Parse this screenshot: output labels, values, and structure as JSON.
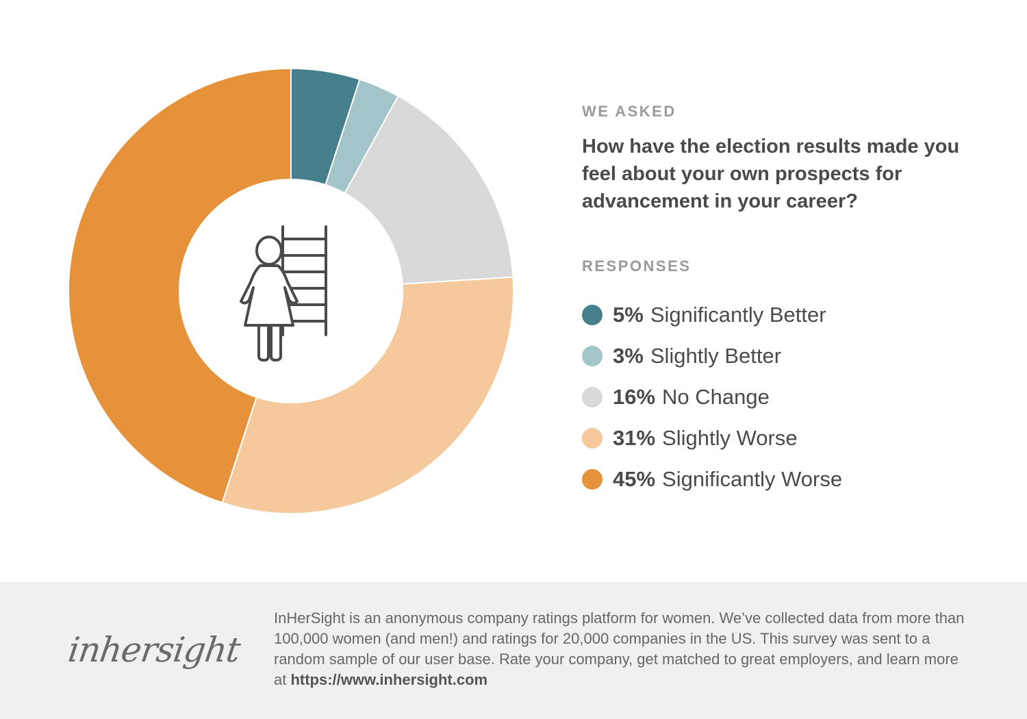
{
  "chart_data": {
    "type": "pie",
    "subtype": "donut",
    "title": "How have the election results made you feel about your own prospects for advancement in your career?",
    "kicker": "WE ASKED",
    "legend_title": "RESPONSES",
    "slices": [
      {
        "label": "Significantly Better",
        "value": 5,
        "pct_text": "5%",
        "color": "#467f8c"
      },
      {
        "label": "Slightly Better",
        "value": 3,
        "pct_text": "3%",
        "color": "#a3c5ca"
      },
      {
        "label": "No Change",
        "value": 16,
        "pct_text": "16%",
        "color": "#d9d9d9"
      },
      {
        "label": "Slightly Worse",
        "value": 31,
        "pct_text": "31%",
        "color": "#f6c99c"
      },
      {
        "label": "Significantly Worse",
        "value": 45,
        "pct_text": "45%",
        "color": "#e6923b"
      }
    ],
    "center_icon": "woman-with-ladder-icon",
    "legend_position": "right"
  },
  "footer": {
    "logo_text": "inhersight",
    "blurb": "InHerSight is an anonymous company ratings platform for women. We’ve collected data from more than 100,000 women (and men!) and ratings for 20,000 companies in the US. This survey was sent to a random sample of our user base. Rate your company, get matched to great employers, and learn more at ",
    "url": "https://www.inhersight.com"
  }
}
